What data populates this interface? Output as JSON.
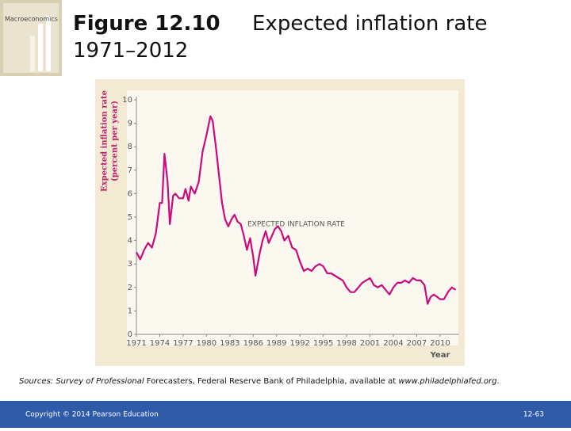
{
  "cover_title": "Macroeconomics",
  "slide": {
    "copyright": "Copyright © 2014 Pearson Education",
    "page": "12-63",
    "sources": [
      "Sources: Survey of Professional",
      "Forecasters, Federal Reserve Bank of Philadelphia, available at",
      "www.philadelphiafed.org",
      "."
    ]
  },
  "chart_data": {
    "type": "line",
    "title": "Figure 12.10",
    "subtitle": "Expected inflation rate 1971–2012",
    "y_label": [
      "Expected inflation rate",
      "(percent per year)"
    ],
    "x_label": "Year",
    "x": [
      1971.0,
      1971.5,
      1972.0,
      1972.5,
      1973.0,
      1973.5,
      1974.0,
      1974.3,
      1974.6,
      1975.0,
      1975.3,
      1975.7,
      1976.0,
      1976.5,
      1977.0,
      1977.3,
      1977.7,
      1978.0,
      1978.5,
      1979.0,
      1979.5,
      1980.0,
      1980.5,
      1980.8,
      1981.2,
      1981.6,
      1982.0,
      1982.4,
      1982.8,
      1983.2,
      1983.6,
      1984.0,
      1984.4,
      1984.8,
      1985.2,
      1985.6,
      1986.0,
      1986.3,
      1986.8,
      1987.2,
      1987.6,
      1988.0,
      1988.4,
      1988.8,
      1989.2,
      1989.6,
      1990.0,
      1990.5,
      1991.0,
      1991.5,
      1992.0,
      1992.5,
      1993.0,
      1993.5,
      1994.0,
      1994.5,
      1995.0,
      1995.5,
      1996.0,
      1996.5,
      1997.0,
      1997.5,
      1998.0,
      1998.5,
      1999.0,
      1999.5,
      2000.0,
      2000.5,
      2001.0,
      2001.5,
      2002.0,
      2002.5,
      2003.0,
      2003.5,
      2004.0,
      2004.5,
      2005.0,
      2005.5,
      2006.0,
      2006.5,
      2007.0,
      2007.5,
      2008.0,
      2008.4,
      2008.8,
      2009.2,
      2009.6,
      2010.0,
      2010.5,
      2011.0,
      2011.5,
      2012.0
    ],
    "series": [
      {
        "name": "EXPECTED INFLATION RATE",
        "color": "#cc0a80",
        "values": [
          3.5,
          3.2,
          3.6,
          3.9,
          3.7,
          4.3,
          5.6,
          5.6,
          7.7,
          6.5,
          4.7,
          5.9,
          6.0,
          5.8,
          5.8,
          6.2,
          5.7,
          6.3,
          6.0,
          6.5,
          7.8,
          8.5,
          9.3,
          9.1,
          8.0,
          6.8,
          5.6,
          4.9,
          4.6,
          4.9,
          5.1,
          4.8,
          4.7,
          4.2,
          3.6,
          4.1,
          3.3,
          2.5,
          3.4,
          4.0,
          4.4,
          3.9,
          4.2,
          4.5,
          4.6,
          4.4,
          4.0,
          4.2,
          3.7,
          3.6,
          3.1,
          2.7,
          2.8,
          2.7,
          2.9,
          3.0,
          2.9,
          2.6,
          2.6,
          2.5,
          2.4,
          2.3,
          2.0,
          1.8,
          1.8,
          2.0,
          2.2,
          2.3,
          2.4,
          2.1,
          2.0,
          2.1,
          1.9,
          1.7,
          2.0,
          2.2,
          2.2,
          2.3,
          2.2,
          2.4,
          2.3,
          2.3,
          2.1,
          1.3,
          1.6,
          1.7,
          1.6,
          1.5,
          1.5,
          1.8,
          2.0,
          1.9
        ]
      }
    ],
    "xlim": [
      1971,
      2012
    ],
    "xticks": [
      1971,
      1974,
      1977,
      1980,
      1983,
      1986,
      1989,
      1992,
      1995,
      1998,
      2001,
      2004,
      2007,
      2010
    ],
    "ylim": [
      0,
      10
    ],
    "yticks": [
      0,
      1,
      2,
      3,
      4,
      5,
      6,
      7,
      8,
      9,
      10
    ]
  }
}
